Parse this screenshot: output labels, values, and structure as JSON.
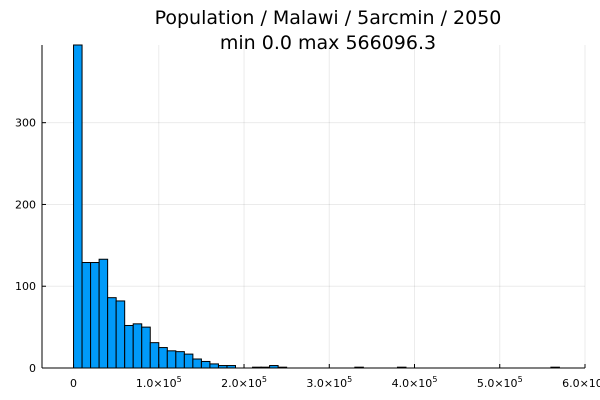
{
  "chart_data": {
    "type": "bar",
    "title": "Population / Malawi / 5arcmin / 2050",
    "subtitle": "min 0.0  max 566096.3",
    "xlabel": "",
    "ylabel": "",
    "bin_width": 10000,
    "bin_start": 0,
    "values": [
      395,
      129,
      129,
      133,
      86,
      82,
      52,
      54,
      50,
      31,
      25,
      21,
      20,
      17,
      11,
      8,
      5,
      3,
      3,
      0,
      0,
      1,
      1,
      3,
      1,
      0,
      0,
      0,
      0,
      0,
      0,
      0,
      0,
      0,
      0,
      0,
      0,
      0,
      0,
      0,
      0,
      0,
      0,
      0,
      0,
      0,
      0,
      0,
      0,
      0,
      0,
      0,
      0,
      0,
      0,
      0,
      1
    ],
    "extra_bins": [
      {
        "start": 330000,
        "count": 1
      },
      {
        "start": 380000,
        "count": 1
      }
    ],
    "xlim": [
      -37000,
      600000
    ],
    "ylim": [
      0,
      395
    ],
    "xticks": [
      {
        "value": 0,
        "mantissa": "0",
        "exp": ""
      },
      {
        "value": 100000,
        "mantissa": "1.0×10",
        "exp": "5"
      },
      {
        "value": 200000,
        "mantissa": "2.0×10",
        "exp": "5"
      },
      {
        "value": 300000,
        "mantissa": "3.0×10",
        "exp": "5"
      },
      {
        "value": 400000,
        "mantissa": "4.0×10",
        "exp": "5"
      },
      {
        "value": 500000,
        "mantissa": "5.0×10",
        "exp": "5"
      },
      {
        "value": 600000,
        "mantissa": "6.0×10",
        "exp": "5"
      }
    ],
    "yticks": [
      {
        "value": 0,
        "label": "0"
      },
      {
        "value": 100,
        "label": "100"
      },
      {
        "value": 200,
        "label": "200"
      },
      {
        "value": 300,
        "label": "300"
      }
    ],
    "grid": true,
    "legend": "none",
    "bar_color": "#009af9"
  }
}
